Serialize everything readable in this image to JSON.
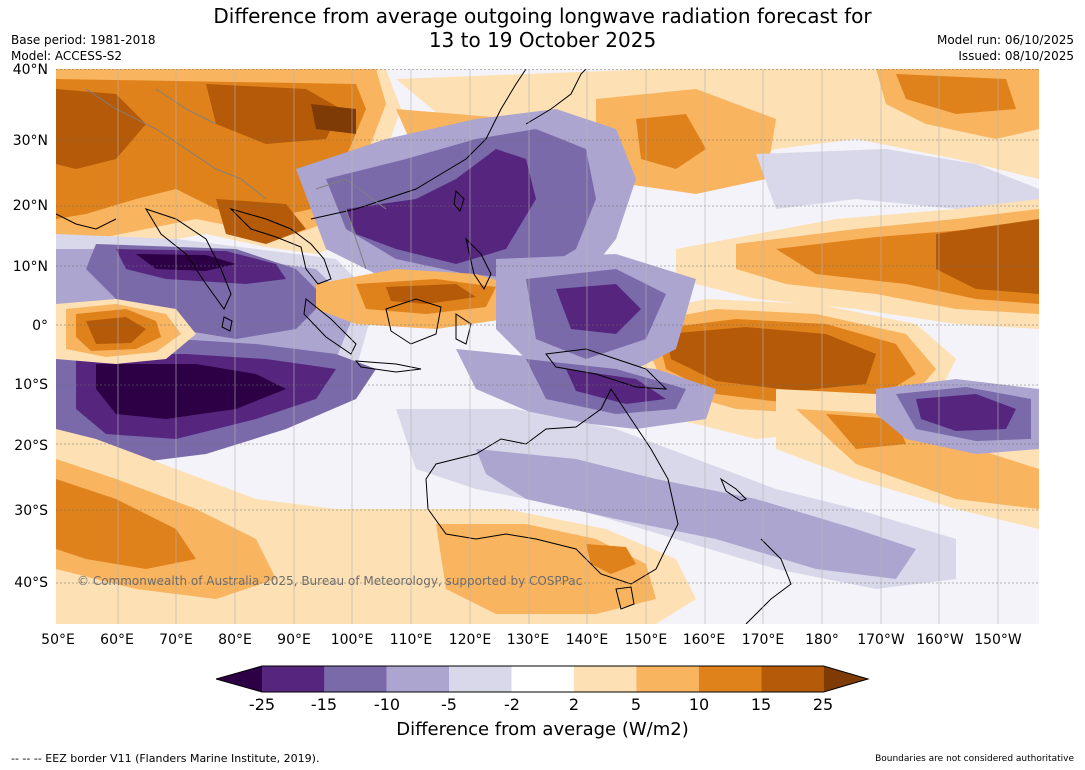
{
  "title_line1": "Difference from average outgoing longwave radiation forecast for",
  "title_line2": "13 to 19 October 2025",
  "base_period": "Base period: 1981-2018",
  "model": "Model: ACCESS-S2",
  "model_run": "Model run: 06/10/2025",
  "issued": "Issued: 08/10/2025",
  "lat_labels": [
    "40°N",
    "30°N",
    "20°N",
    "10°N",
    "0°",
    "10°S",
    "20°S",
    "30°S",
    "40°S"
  ],
  "lon_labels": [
    "50°E",
    "60°E",
    "70°E",
    "80°E",
    "90°E",
    "100°E",
    "110°E",
    "120°E",
    "130°E",
    "140°E",
    "150°E",
    "160°E",
    "170°E",
    "180°",
    "170°W",
    "160°W",
    "150°W"
  ],
  "copyright": "© Commonwealth of Australia 2025, Bureau of Meteorology, supported by COSPPac",
  "colorbar": {
    "ticks": [
      "-25",
      "-15",
      "-10",
      "-5",
      "-2",
      "2",
      "5",
      "10",
      "15",
      "25"
    ],
    "colors": [
      "#2d0045",
      "#56267f",
      "#7a6aaa",
      "#aca5cf",
      "#d8d8ea",
      "#ffffff",
      "#fde0b3",
      "#f8b45f",
      "#e0821b",
      "#b45a08",
      "#7f3b06"
    ],
    "label": "Difference from average (W/m2)"
  },
  "footer_left": "--  --  -- EEZ border V11 (Flanders Marine Institute, 2019).",
  "footer_right": "Boundaries are not considered authoritative"
}
